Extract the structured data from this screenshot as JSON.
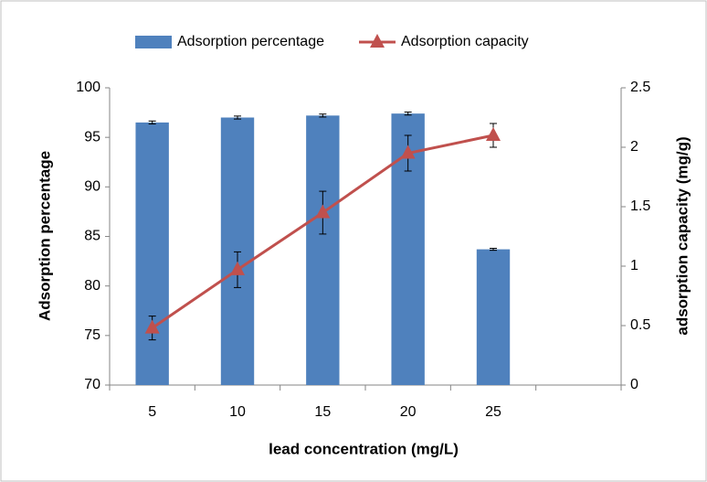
{
  "chart_data": {
    "type": "combo",
    "xlabel": "lead concentration (mg/L)",
    "ylabel": "Adsorption percentage",
    "y2label": "adsorption capacity (mg/g)",
    "categories": [
      "5",
      "10",
      "15",
      "20",
      "25",
      null
    ],
    "series": [
      {
        "name": "Adsorption percentage",
        "type": "bar",
        "color": "#4f81bd",
        "values": [
          96.5,
          97.0,
          97.2,
          97.4,
          83.7,
          null
        ],
        "errors": [
          0.15,
          0.15,
          0.15,
          0.15,
          0.1,
          null
        ]
      },
      {
        "name": "Adsorption capacity",
        "type": "line",
        "axis": "y2",
        "color": "#c0504d",
        "values": [
          0.48,
          0.97,
          1.45,
          1.95,
          2.1,
          null
        ],
        "errors": [
          0.1,
          0.15,
          0.18,
          0.15,
          0.1,
          null
        ]
      }
    ],
    "ylim": [
      70,
      100
    ],
    "yticks": [
      70,
      75,
      80,
      85,
      90,
      95,
      100
    ],
    "y2lim": [
      0,
      2.5
    ],
    "y2ticks": [
      0,
      0.5,
      1,
      1.5,
      2,
      2.5
    ],
    "legend": "top"
  }
}
